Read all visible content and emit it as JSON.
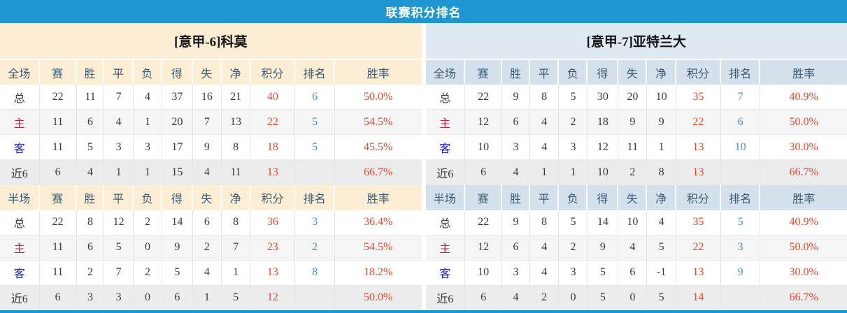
{
  "page_title": "联赛积分排名",
  "columns": {
    "full": [
      "全场",
      "赛",
      "胜",
      "平",
      "负",
      "得",
      "失",
      "净",
      "积分",
      "排名",
      "胜率"
    ],
    "half": [
      "半场",
      "赛",
      "胜",
      "平",
      "负",
      "得",
      "失",
      "净",
      "积分",
      "排名",
      "胜率"
    ]
  },
  "teams": [
    {
      "title": "[意甲-6]科莫",
      "theme": "home",
      "full": [
        {
          "label": "总",
          "scope": "total",
          "values": [
            "22",
            "11",
            "7",
            "4",
            "37",
            "16",
            "21"
          ],
          "points": "40",
          "rank": "6",
          "rate": "50.0%"
        },
        {
          "label": "主",
          "scope": "home",
          "values": [
            "11",
            "6",
            "4",
            "1",
            "20",
            "7",
            "13"
          ],
          "points": "22",
          "rank": "5",
          "rate": "54.5%"
        },
        {
          "label": "客",
          "scope": "away",
          "values": [
            "11",
            "5",
            "3",
            "3",
            "17",
            "9",
            "8"
          ],
          "points": "18",
          "rank": "5",
          "rate": "45.5%"
        },
        {
          "label": "近6",
          "scope": "last6",
          "values": [
            "6",
            "4",
            "1",
            "1",
            "15",
            "4",
            "11"
          ],
          "points": "13",
          "rank": "",
          "rate": "66.7%"
        }
      ],
      "half": [
        {
          "label": "总",
          "scope": "total",
          "values": [
            "22",
            "8",
            "12",
            "2",
            "14",
            "6",
            "8"
          ],
          "points": "36",
          "rank": "3",
          "rate": "36.4%"
        },
        {
          "label": "主",
          "scope": "home",
          "values": [
            "11",
            "6",
            "5",
            "0",
            "9",
            "2",
            "7"
          ],
          "points": "23",
          "rank": "2",
          "rate": "54.5%"
        },
        {
          "label": "客",
          "scope": "away",
          "values": [
            "11",
            "2",
            "7",
            "2",
            "5",
            "4",
            "1"
          ],
          "points": "13",
          "rank": "8",
          "rate": "18.2%"
        },
        {
          "label": "近6",
          "scope": "last6",
          "values": [
            "6",
            "3",
            "3",
            "0",
            "6",
            "1",
            "5"
          ],
          "points": "12",
          "rank": "",
          "rate": "50.0%"
        }
      ]
    },
    {
      "title": "[意甲-7]亚特兰大",
      "theme": "away",
      "full": [
        {
          "label": "总",
          "scope": "total",
          "values": [
            "22",
            "9",
            "8",
            "5",
            "30",
            "20",
            "10"
          ],
          "points": "35",
          "rank": "7",
          "rate": "40.9%"
        },
        {
          "label": "主",
          "scope": "home",
          "values": [
            "12",
            "6",
            "4",
            "2",
            "18",
            "9",
            "9"
          ],
          "points": "22",
          "rank": "6",
          "rate": "50.0%"
        },
        {
          "label": "客",
          "scope": "away",
          "values": [
            "10",
            "3",
            "4",
            "3",
            "12",
            "11",
            "1"
          ],
          "points": "13",
          "rank": "10",
          "rate": "30.0%"
        },
        {
          "label": "近6",
          "scope": "last6",
          "values": [
            "6",
            "4",
            "1",
            "1",
            "10",
            "2",
            "8"
          ],
          "points": "13",
          "rank": "",
          "rate": "66.7%"
        }
      ],
      "half": [
        {
          "label": "总",
          "scope": "total",
          "values": [
            "22",
            "9",
            "8",
            "5",
            "14",
            "10",
            "4"
          ],
          "points": "35",
          "rank": "5",
          "rate": "40.9%"
        },
        {
          "label": "主",
          "scope": "home",
          "values": [
            "12",
            "6",
            "4",
            "2",
            "9",
            "4",
            "5"
          ],
          "points": "22",
          "rank": "3",
          "rate": "50.0%"
        },
        {
          "label": "客",
          "scope": "away",
          "values": [
            "10",
            "3",
            "4",
            "3",
            "5",
            "6",
            "-1"
          ],
          "points": "13",
          "rank": "9",
          "rate": "30.0%"
        },
        {
          "label": "近6",
          "scope": "last6",
          "values": [
            "6",
            "4",
            "2",
            "0",
            "5",
            "0",
            "5"
          ],
          "points": "14",
          "rank": "",
          "rate": "66.7%"
        }
      ]
    }
  ],
  "colors": {
    "topbar": "#1e96d2",
    "home_header_bg": "#fbeed4",
    "away_title_bg": "#dfe9f1",
    "away_header_bg": "#d4e0eb",
    "header_text": "#3a5a76",
    "points_red": "#e8472b",
    "rank_blue": "#4891d2",
    "winrate_red": "#e8472b",
    "home_row_label_red": "#c2283c",
    "away_row_label_blue": "#2323c8",
    "bottom_bar": "#1e96d2"
  }
}
